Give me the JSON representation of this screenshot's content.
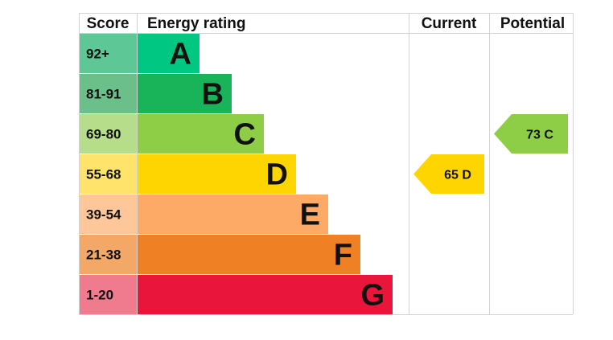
{
  "headers": {
    "score": "Score",
    "energy_rating": "Energy rating",
    "current": "Current",
    "potential": "Potential"
  },
  "chart_data": {
    "type": "bar",
    "title": "",
    "categories": [
      "A",
      "B",
      "C",
      "D",
      "E",
      "F",
      "G"
    ],
    "bands": [
      {
        "letter": "A",
        "range": "92+",
        "color": "#00c781",
        "score_color": "#5dc796"
      },
      {
        "letter": "B",
        "range": "81-91",
        "color": "#19b459",
        "score_color": "#6bc08a"
      },
      {
        "letter": "C",
        "range": "69-80",
        "color": "#8dce46",
        "score_color": "#b6de8a"
      },
      {
        "letter": "D",
        "range": "55-68",
        "color": "#ffd500",
        "score_color": "#ffe36b"
      },
      {
        "letter": "E",
        "range": "39-54",
        "color": "#fcaa65",
        "score_color": "#fdc79a"
      },
      {
        "letter": "F",
        "range": "21-38",
        "color": "#ef8023",
        "score_color": "#f4a868"
      },
      {
        "letter": "G",
        "range": "1-20",
        "color": "#e9153b",
        "score_color": "#f07a8e"
      }
    ],
    "current": {
      "value": 65,
      "band": "D",
      "label": "65  D",
      "color": "#ffd500"
    },
    "potential": {
      "value": 73,
      "band": "C",
      "label": "73  C",
      "color": "#8dce46"
    }
  }
}
